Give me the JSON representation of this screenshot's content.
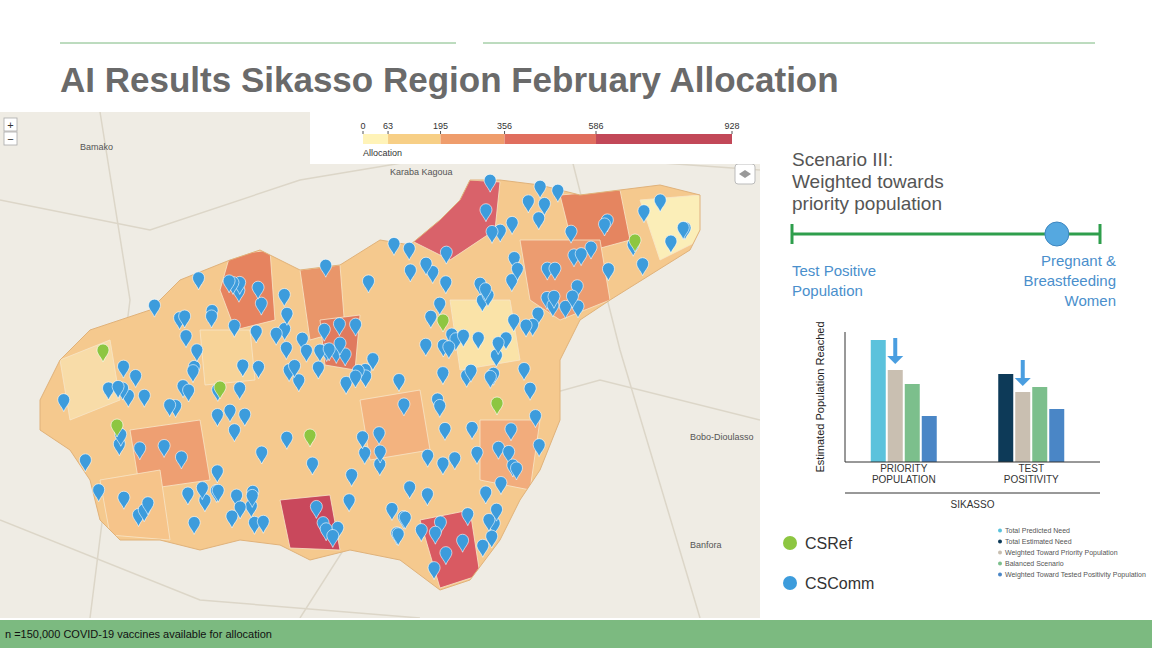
{
  "title": "AI Results Sikasso Region February Allocation",
  "map": {
    "color_scale": {
      "label": "Allocation",
      "range": [
        0,
        928
      ],
      "ticks": [
        0,
        63,
        195,
        356,
        586,
        928
      ]
    },
    "place_labels": [
      "Bamako",
      "Karaba Kagoua",
      "Bobo-Dioulasso",
      "Banfora"
    ],
    "zoom_controls": [
      "+",
      "−"
    ],
    "legend": [
      {
        "label": "CSRef",
        "color": "#8dc641"
      },
      {
        "label": "CSComm",
        "color": "#3d9cdc"
      }
    ]
  },
  "scenario": {
    "title_lines": [
      "Scenario III:",
      "Weighted towards",
      "priority population"
    ],
    "left_label_lines": [
      "Test Positive",
      "Population"
    ],
    "right_label_lines": [
      "Pregnant &",
      "Breastfeeding",
      "Women"
    ],
    "slider_range": [
      0,
      1
    ],
    "slider_position": 0.86
  },
  "chart_data": {
    "type": "bar",
    "y_label": "Estimated Population Reached",
    "x_label": "SIKASSO",
    "categories": [
      "PRIORITY POPULATION",
      "TEST POSITIVITY"
    ],
    "ylim": [
      0,
      130
    ],
    "tick_labels": "x",
    "series": [
      {
        "name": "Total Predicted Need",
        "color": "#5bc2dc",
        "values": [
          122,
          null
        ]
      },
      {
        "name": "Total Estimated Need",
        "color": "#0d3a58",
        "values": [
          null,
          88
        ]
      },
      {
        "name": "Weighted Toward Priority Population",
        "color": "#c9bfb1",
        "values": [
          92,
          70
        ]
      },
      {
        "name": "Balanced Scenario",
        "color": "#7cbf8c",
        "values": [
          78,
          75
        ]
      },
      {
        "name": "Weighted Toward Tested Positivity Population",
        "color": "#4a86c6",
        "values": [
          46,
          53
        ]
      }
    ]
  },
  "footer": "n =150,000 COVID-19 vaccines available for allocation"
}
